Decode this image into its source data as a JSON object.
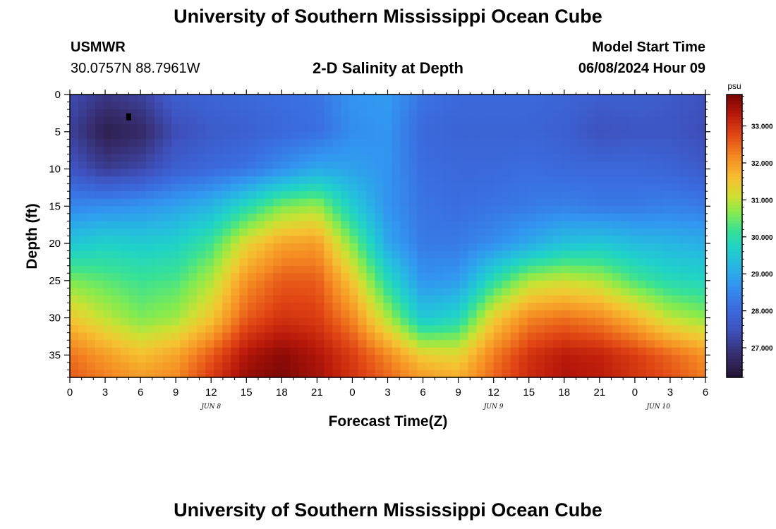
{
  "header": {
    "title": "University of Southern Mississippi Ocean Cube",
    "station_name": "USMWR",
    "station_coords": "30.0757N  88.7961W",
    "plot_title": "2-D Salinity at Depth",
    "model_start_label": "Model Start Time",
    "model_start_value": "06/08/2024 Hour 09"
  },
  "footer": {
    "title": "University of Southern Mississippi Ocean Cube"
  },
  "chart_data": {
    "type": "heatmap",
    "title": "2-D Salinity at Depth",
    "xlabel": "Forecast Time(Z)",
    "ylabel": "Depth (ft)",
    "x_ticks": [
      "0",
      "3",
      "6",
      "9",
      "12",
      "15",
      "18",
      "21",
      "0",
      "3",
      "6",
      "9",
      "12",
      "15",
      "18",
      "21",
      "0",
      "3",
      "6"
    ],
    "x_hours": [
      0,
      3,
      6,
      9,
      12,
      15,
      18,
      21,
      24,
      27,
      30,
      33,
      36,
      39,
      42,
      45,
      48,
      51,
      54
    ],
    "date_labels": [
      {
        "label": "JUN 8",
        "hour": 12
      },
      {
        "label": "JUN 9",
        "hour": 36
      },
      {
        "label": "JUN 10",
        "hour": 50
      }
    ],
    "xlim": [
      0,
      54
    ],
    "y_ticks": [
      "0",
      "5",
      "10",
      "15",
      "20",
      "25",
      "30",
      "35"
    ],
    "y_values": [
      0,
      5,
      10,
      15,
      20,
      25,
      30,
      35
    ],
    "ylim": [
      0,
      38
    ],
    "y_inverted": true,
    "colorbar": {
      "unit": "psu",
      "min": 26.2,
      "max": 33.85,
      "tick_values": [
        27,
        28,
        29,
        30,
        31,
        32,
        33
      ],
      "tick_labels": [
        "27.000",
        "28.000",
        "29.000",
        "30.000",
        "31.000",
        "32.000",
        "33.000"
      ]
    },
    "hours": [
      0,
      3,
      6,
      9,
      12,
      15,
      18,
      21,
      24,
      27,
      30,
      33,
      36,
      39,
      42,
      45,
      48,
      51,
      54
    ],
    "depths": [
      0,
      5,
      10,
      15,
      20,
      25,
      30,
      35,
      38
    ],
    "salinity": [
      [
        27.4,
        27.0,
        27.2,
        27.8,
        27.9,
        28.0,
        28.1,
        28.2,
        28.7,
        28.8,
        28.2,
        28.0,
        28.0,
        28.0,
        27.9,
        27.8,
        27.8,
        27.7,
        27.5
      ],
      [
        27.2,
        26.5,
        26.7,
        27.4,
        27.7,
        27.8,
        28.0,
        28.1,
        28.6,
        28.7,
        28.0,
        27.9,
        27.9,
        27.9,
        27.8,
        27.5,
        27.6,
        27.6,
        27.4
      ],
      [
        27.6,
        27.1,
        27.3,
        27.8,
        28.0,
        28.2,
        28.6,
        29.0,
        28.9,
        28.7,
        28.1,
        28.0,
        28.0,
        28.1,
        28.0,
        28.0,
        28.0,
        27.9,
        27.7
      ],
      [
        28.5,
        28.6,
        28.7,
        28.9,
        29.2,
        29.9,
        30.6,
        30.8,
        29.6,
        28.7,
        28.2,
        28.1,
        28.2,
        28.3,
        28.4,
        28.3,
        28.3,
        28.4,
        28.3
      ],
      [
        29.5,
        29.7,
        29.6,
        29.7,
        30.2,
        31.3,
        31.9,
        32.0,
        30.6,
        29.0,
        28.3,
        28.3,
        28.6,
        29.0,
        29.4,
        29.5,
        29.3,
        29.2,
        29.1
      ],
      [
        30.6,
        30.4,
        30.2,
        30.3,
        30.9,
        32.1,
        32.6,
        32.6,
        31.5,
        29.9,
        28.7,
        28.8,
        30.0,
        30.9,
        31.1,
        30.9,
        30.3,
        29.9,
        29.8
      ],
      [
        31.5,
        31.0,
        30.6,
        30.8,
        31.5,
        32.6,
        33.0,
        32.9,
        32.2,
        30.9,
        29.5,
        29.8,
        31.4,
        32.2,
        32.4,
        32.2,
        31.7,
        31.0,
        30.7
      ],
      [
        32.4,
        32.0,
        31.6,
        31.9,
        32.6,
        33.4,
        33.7,
        33.4,
        32.9,
        32.2,
        31.4,
        31.3,
        32.3,
        33.0,
        33.3,
        33.2,
        32.9,
        32.5,
        32.1
      ],
      [
        32.6,
        32.3,
        32.0,
        32.2,
        32.9,
        33.6,
        33.8,
        33.5,
        33.0,
        32.5,
        32.0,
        31.8,
        32.5,
        33.1,
        33.4,
        33.3,
        33.0,
        32.7,
        32.3
      ]
    ],
    "marker": {
      "hour": 5,
      "depth": 3
    }
  }
}
